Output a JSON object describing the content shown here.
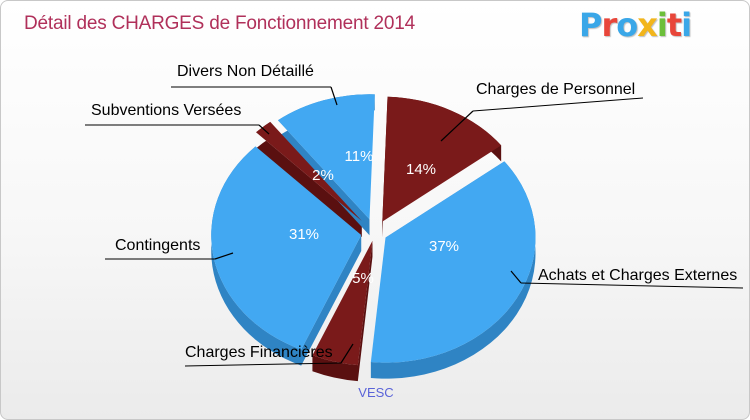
{
  "title": "Détail des CHARGES de Fonctionnement 2014",
  "logo": {
    "letters": [
      "P",
      "r",
      "o",
      "x",
      "i",
      "t",
      "i"
    ],
    "colors": [
      "#3aa7e8",
      "#e8463a",
      "#3aa7e8",
      "#f2b51c",
      "#6cbf3a",
      "#e8463a",
      "#3aa7e8"
    ]
  },
  "commune": "VESC",
  "colors": {
    "blue": "#42a8f2",
    "blue_side": "#2f84c4",
    "red": "#7a1a1a",
    "red_side": "#5a1010"
  },
  "chart_data": {
    "type": "pie",
    "title": "Détail des CHARGES de Fonctionnement 2014",
    "slices": [
      {
        "label": "Charges de Personnel",
        "percent": 14,
        "percent_label": "14%",
        "color": "red"
      },
      {
        "label": "Achats et Charges Externes",
        "percent": 37,
        "percent_label": "37%",
        "color": "blue"
      },
      {
        "label": "Charges Financières",
        "percent": 5,
        "percent_label": "5%",
        "color": "red"
      },
      {
        "label": "Contingents",
        "percent": 31,
        "percent_label": "31%",
        "color": "blue"
      },
      {
        "label": "Subventions Versées",
        "percent": 2,
        "percent_label": "2%",
        "color": "red"
      },
      {
        "label": "Divers Non Détaillé",
        "percent": 11,
        "percent_label": "11%",
        "color": "blue"
      }
    ]
  }
}
